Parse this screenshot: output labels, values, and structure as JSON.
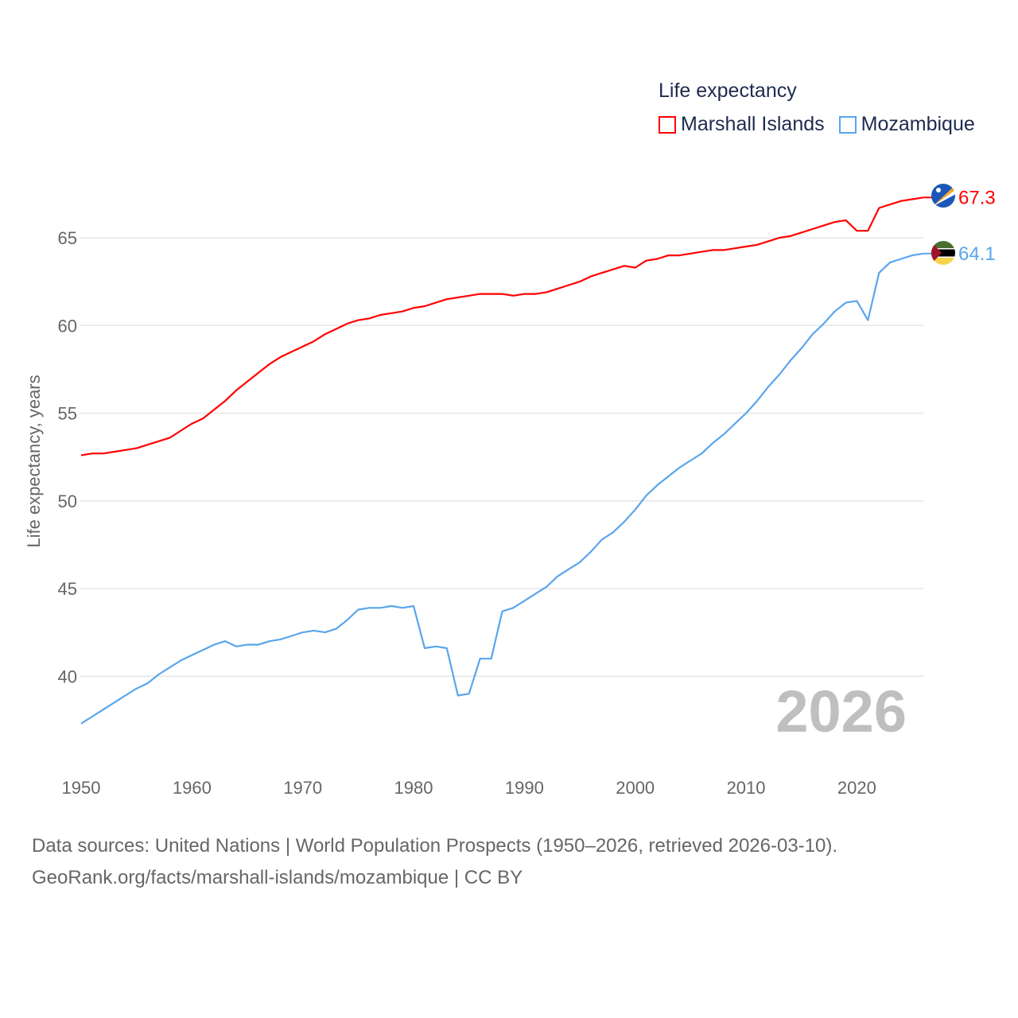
{
  "chart_data": {
    "type": "line",
    "title": "Life expectancy",
    "xlabel": "",
    "ylabel": "Life expectancy, years",
    "xlim": [
      1950,
      2026
    ],
    "ylim": [
      36.5,
      68
    ],
    "grid": true,
    "legend_placement": "top-right",
    "x_ticks": [
      "1950",
      "1960",
      "1970",
      "1980",
      "1990",
      "2000",
      "2010",
      "2020"
    ],
    "y_ticks": [
      "40",
      "45",
      "50",
      "55",
      "60",
      "65"
    ],
    "watermark_year": "2026",
    "series": [
      {
        "name": "Marshall Islands",
        "color": "#ff0000",
        "end_label": "67.3",
        "values": [
          52.6,
          52.7,
          52.7,
          52.8,
          52.9,
          53.0,
          53.2,
          53.4,
          53.6,
          54.0,
          54.4,
          54.7,
          55.2,
          55.7,
          56.3,
          56.8,
          57.3,
          57.8,
          58.2,
          58.5,
          58.8,
          59.1,
          59.5,
          59.8,
          60.1,
          60.3,
          60.4,
          60.6,
          60.7,
          60.8,
          61.0,
          61.1,
          61.3,
          61.5,
          61.6,
          61.7,
          61.8,
          61.8,
          61.8,
          61.7,
          61.8,
          61.8,
          61.9,
          62.1,
          62.3,
          62.5,
          62.8,
          63.0,
          63.2,
          63.4,
          63.3,
          63.7,
          63.8,
          64.0,
          64.0,
          64.1,
          64.2,
          64.3,
          64.3,
          64.4,
          64.5,
          64.6,
          64.8,
          65.0,
          65.1,
          65.3,
          65.5,
          65.7,
          65.9,
          66.0,
          65.4,
          65.4,
          66.7,
          66.9,
          67.1,
          67.2,
          67.3
        ]
      },
      {
        "name": "Mozambique",
        "color": "#5aa5ec",
        "end_label": "64.1",
        "values": [
          37.3,
          37.7,
          38.1,
          38.5,
          38.9,
          39.3,
          39.6,
          40.1,
          40.5,
          40.9,
          41.2,
          41.5,
          41.8,
          42.0,
          41.7,
          41.8,
          41.8,
          42.0,
          42.1,
          42.3,
          42.5,
          42.6,
          42.5,
          42.7,
          43.2,
          43.8,
          43.9,
          43.9,
          44.0,
          43.9,
          44.0,
          41.6,
          41.7,
          41.6,
          38.9,
          39.0,
          41.0,
          41.0,
          43.7,
          43.9,
          44.3,
          44.7,
          45.1,
          45.7,
          46.1,
          46.5,
          47.1,
          47.8,
          48.2,
          48.8,
          49.5,
          50.3,
          50.9,
          51.4,
          51.9,
          52.3,
          52.7,
          53.3,
          53.8,
          54.4,
          55.0,
          55.7,
          56.5,
          57.2,
          58.0,
          58.7,
          59.5,
          60.1,
          60.8,
          61.3,
          61.4,
          60.3,
          63.0,
          63.6,
          63.8,
          64.0,
          64.1
        ]
      }
    ]
  },
  "legend": {
    "title": "Life expectancy",
    "items": [
      "Marshall Islands",
      "Mozambique"
    ]
  },
  "footer": {
    "line1": "Data sources: United Nations | World Population Prospects (1950–2026, retrieved 2026-03-10).",
    "line2": "GeoRank.org/facts/marshall-islands/mozambique | CC BY"
  }
}
